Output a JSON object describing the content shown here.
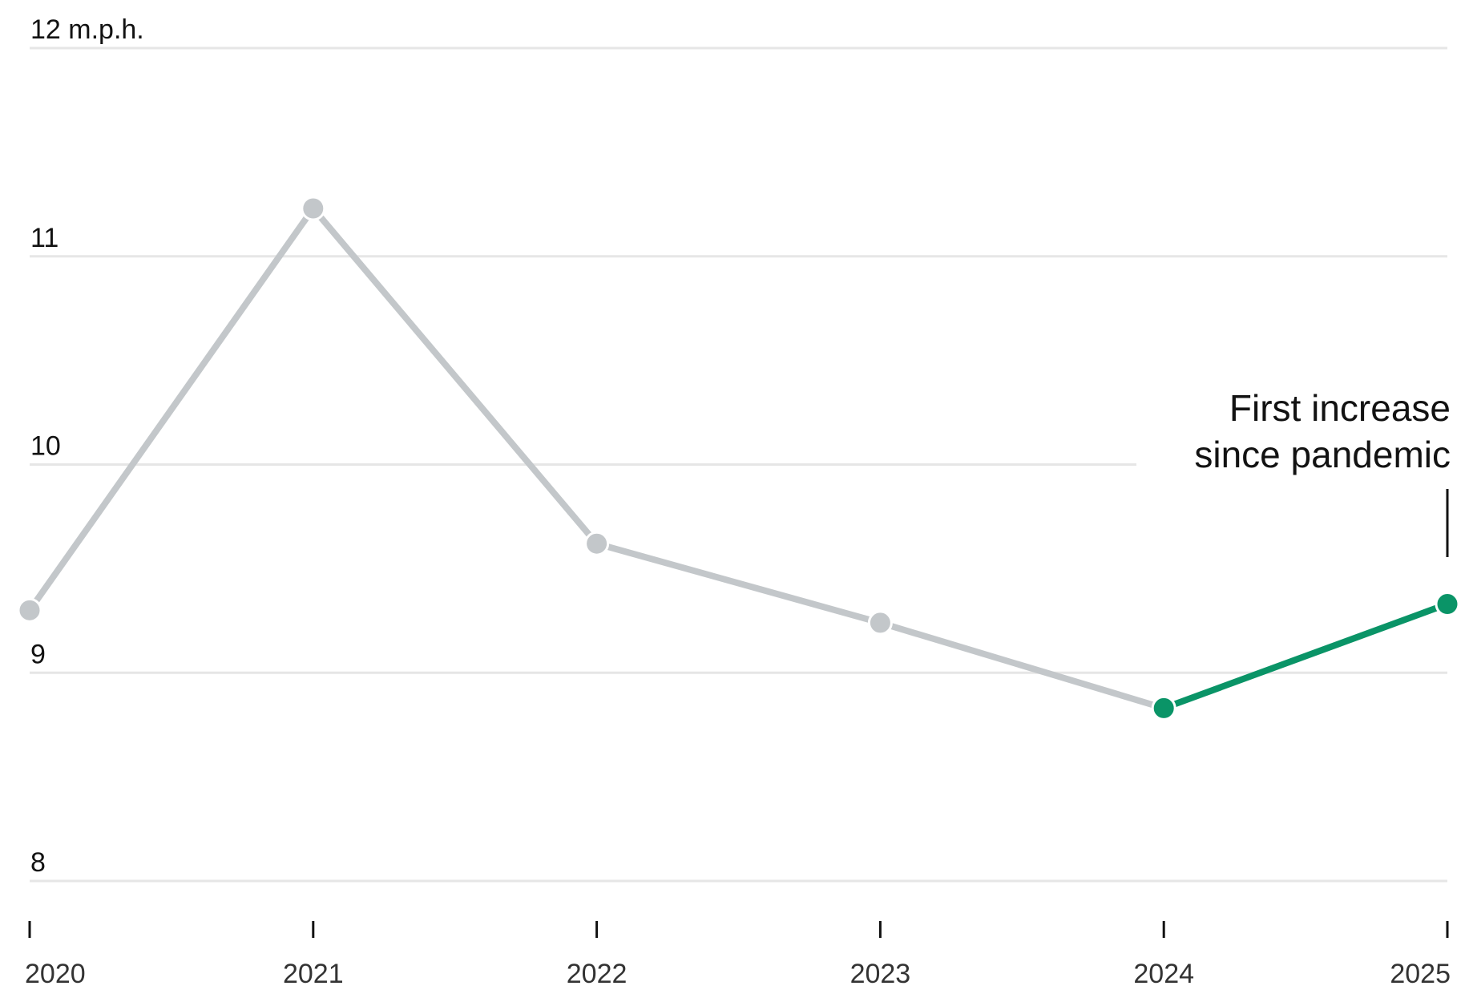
{
  "chart_data": {
    "type": "line",
    "categories": [
      "2020",
      "2021",
      "2022",
      "2023",
      "2024",
      "2025"
    ],
    "values": [
      9.3,
      11.23,
      9.62,
      9.24,
      8.83,
      9.33
    ],
    "highlight_from_index": 4,
    "ylim": [
      8,
      12
    ],
    "y_ticks": [
      8,
      9,
      10,
      11,
      12
    ],
    "y_tick_labels": [
      "8",
      "9",
      "10",
      "11",
      "12 m.p.h."
    ],
    "x_tick_labels": [
      "2020",
      "2021",
      "2022",
      "2023",
      "2024",
      "2025"
    ],
    "grid": true,
    "title": "",
    "xlabel": "",
    "ylabel": "",
    "annotation": {
      "lines": [
        "First increase",
        "since pandemic"
      ],
      "point_index": 5
    },
    "colors": {
      "base_line": "#c3c7ca",
      "highlight_line": "#0a9467",
      "grid": "#e6e6e6",
      "tick": "#121212"
    }
  }
}
